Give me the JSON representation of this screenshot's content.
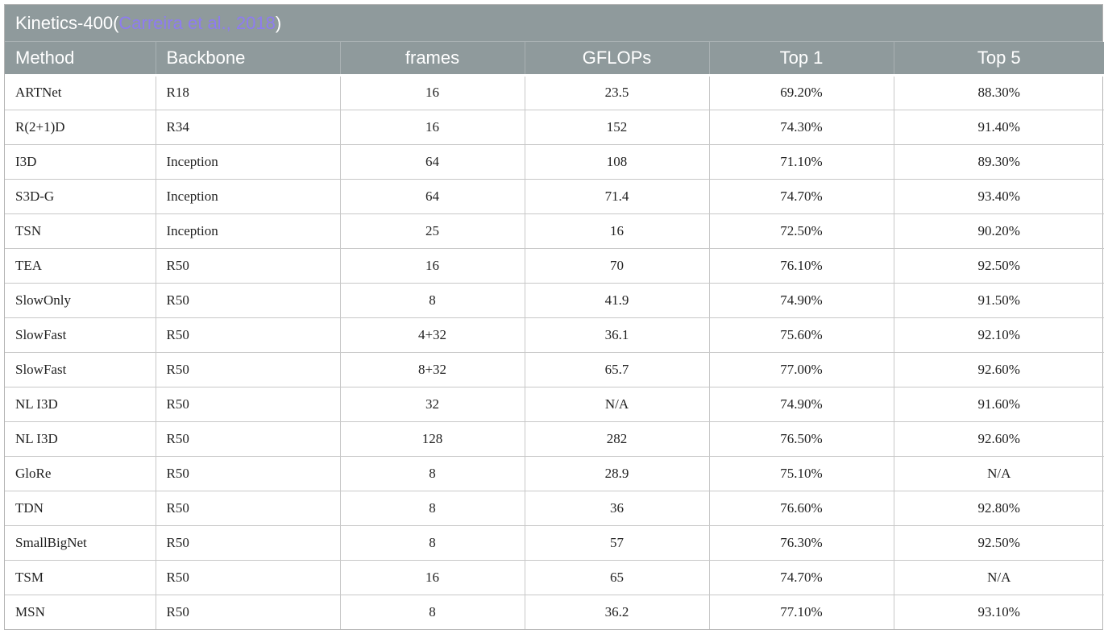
{
  "caption": {
    "title": "Kinetics-400",
    "open_paren": "(",
    "citation": "Carreira et al., 2018",
    "close_paren": ")"
  },
  "headers": [
    "Method",
    "Backbone",
    "frames",
    "GFLOPs",
    "Top 1",
    "Top 5"
  ],
  "rows": [
    [
      "ARTNet",
      "R18",
      "16",
      "23.5",
      "69.20%",
      "88.30%"
    ],
    [
      "R(2+1)D",
      "R34",
      "16",
      "152",
      "74.30%",
      "91.40%"
    ],
    [
      "I3D",
      "Inception",
      "64",
      "108",
      "71.10%",
      "89.30%"
    ],
    [
      "S3D-G",
      "Inception",
      "64",
      "71.4",
      "74.70%",
      "93.40%"
    ],
    [
      "TSN",
      "Inception",
      "25",
      "16",
      "72.50%",
      "90.20%"
    ],
    [
      "TEA",
      "R50",
      "16",
      "70",
      "76.10%",
      "92.50%"
    ],
    [
      "SlowOnly",
      "R50",
      "8",
      "41.9",
      "74.90%",
      "91.50%"
    ],
    [
      "SlowFast",
      "R50",
      "4+32",
      "36.1",
      "75.60%",
      "92.10%"
    ],
    [
      "SlowFast",
      "R50",
      "8+32",
      "65.7",
      "77.00%",
      "92.60%"
    ],
    [
      "NL I3D",
      "R50",
      "32",
      "N/A",
      "74.90%",
      "91.60%"
    ],
    [
      "NL I3D",
      "R50",
      "128",
      "282",
      "76.50%",
      "92.60%"
    ],
    [
      "GloRe",
      "R50",
      "8",
      "28.9",
      "75.10%",
      "N/A"
    ],
    [
      "TDN",
      "R50",
      "8",
      "36",
      "76.60%",
      "92.80%"
    ],
    [
      "SmallBigNet",
      "R50",
      "8",
      "57",
      "76.30%",
      "92.50%"
    ],
    [
      "TSM",
      "R50",
      "16",
      "65",
      "74.70%",
      "N/A"
    ],
    [
      "MSN",
      "R50",
      "8",
      "36.2",
      "77.10%",
      "93.10%"
    ]
  ],
  "colors": {
    "header_bg": "#8f9a9c",
    "header_text": "#ffffff",
    "citation_link": "#8e7cf0",
    "grid_line": "#c8c8c8"
  }
}
